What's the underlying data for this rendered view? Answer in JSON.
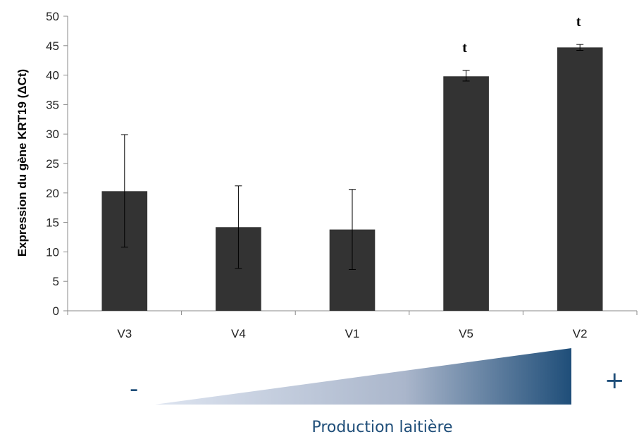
{
  "chart_data": {
    "type": "bar",
    "ylabel": "Expression du gène KRT19 (ΔCt)",
    "xlabel": "",
    "ylim": [
      0,
      50
    ],
    "yticks": [
      0,
      5,
      10,
      15,
      20,
      25,
      30,
      35,
      40,
      45,
      50
    ],
    "categories": [
      "V3",
      "V4",
      "V1",
      "V5",
      "V2"
    ],
    "values": [
      20.3,
      14.2,
      13.8,
      39.8,
      44.7
    ],
    "error_low": [
      10.8,
      7.2,
      7.0,
      39.0,
      44.2
    ],
    "error_high": [
      29.9,
      21.2,
      20.6,
      40.8,
      45.2
    ],
    "annotations": [
      "",
      "",
      "",
      "t",
      "t"
    ],
    "bar_color": "#333333",
    "grid": false,
    "legend": "none"
  },
  "gradient": {
    "low_sign": "-",
    "high_sign": "+",
    "label": "Production laitière",
    "color_start": "#dde4f0",
    "color_end": "#1f4e79"
  }
}
